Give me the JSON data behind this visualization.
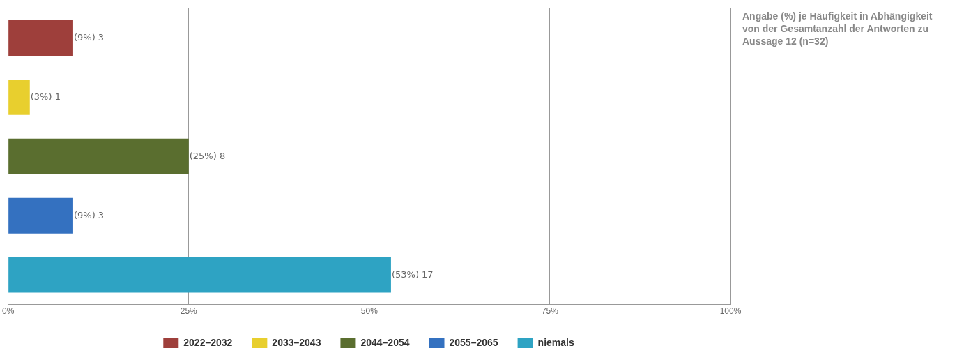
{
  "chart_data": {
    "type": "bar",
    "orientation": "horizontal",
    "categories": [
      null,
      null,
      null,
      null,
      null
    ],
    "series": [
      {
        "name": "2022–2032",
        "color": "#9e3f3b",
        "values": [
          9,
          null,
          null,
          null,
          null
        ],
        "value_labels": [
          "(9%) 3",
          null,
          null,
          null,
          null
        ]
      },
      {
        "name": "2033–2043",
        "color": "#e8cf2e",
        "values": [
          null,
          3,
          null,
          null,
          null
        ],
        "value_labels": [
          null,
          "(3%) 1",
          null,
          null,
          null
        ]
      },
      {
        "name": "2044–2054",
        "color": "#5a6e2f",
        "values": [
          null,
          null,
          25,
          null,
          null
        ],
        "value_labels": [
          null,
          null,
          "(25%) 8",
          null,
          null
        ]
      },
      {
        "name": "2055–2065",
        "color": "#3471c0",
        "values": [
          null,
          null,
          null,
          9,
          null
        ],
        "value_labels": [
          null,
          null,
          null,
          "(9%) 3",
          null
        ]
      },
      {
        "name": "niemals",
        "color": "#2ea3c3",
        "values": [
          null,
          null,
          null,
          null,
          53
        ],
        "value_labels": [
          null,
          null,
          null,
          null,
          "(53%) 17"
        ]
      }
    ],
    "xlim": [
      0,
      100
    ],
    "xticks": [
      {
        "value": 0,
        "label": "0%"
      },
      {
        "value": 25,
        "label": "25%"
      },
      {
        "value": 50,
        "label": "50%"
      },
      {
        "value": 75,
        "label": "75%"
      },
      {
        "value": 100,
        "label": "100%"
      }
    ],
    "grid": "x",
    "legend": "bottom",
    "annotations": [
      "Angabe (%) je Häufigkeit in Abhängigkeit von der Gesamtanzahl der Antworten zu Aussage 12 (n=32)"
    ]
  }
}
